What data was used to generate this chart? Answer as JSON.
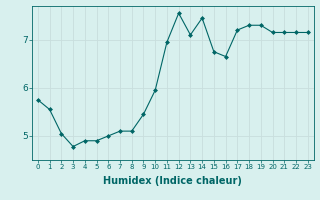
{
  "x": [
    0,
    1,
    2,
    3,
    4,
    5,
    6,
    7,
    8,
    9,
    10,
    11,
    12,
    13,
    14,
    15,
    16,
    17,
    18,
    19,
    20,
    21,
    22,
    23
  ],
  "y": [
    5.75,
    5.55,
    5.05,
    4.78,
    4.9,
    4.9,
    5.0,
    5.1,
    5.1,
    5.45,
    5.95,
    6.95,
    7.55,
    7.1,
    7.45,
    6.75,
    6.65,
    7.2,
    7.3,
    7.3,
    7.15,
    7.15,
    7.15,
    7.15
  ],
  "line_color": "#006666",
  "marker": "D",
  "marker_size": 2.0,
  "bg_color": "#d8f0ee",
  "grid_color": "#c8dedd",
  "tick_color": "#006666",
  "xlabel": "Humidex (Indice chaleur)",
  "xlabel_fontsize": 7,
  "ytick_fontsize": 6.5,
  "xtick_fontsize": 5.0,
  "yticks": [
    5,
    6,
    7
  ],
  "xticks": [
    0,
    1,
    2,
    3,
    4,
    5,
    6,
    7,
    8,
    9,
    10,
    11,
    12,
    13,
    14,
    15,
    16,
    17,
    18,
    19,
    20,
    21,
    22,
    23
  ],
  "xlim": [
    -0.5,
    23.5
  ],
  "ylim": [
    4.5,
    7.7
  ]
}
